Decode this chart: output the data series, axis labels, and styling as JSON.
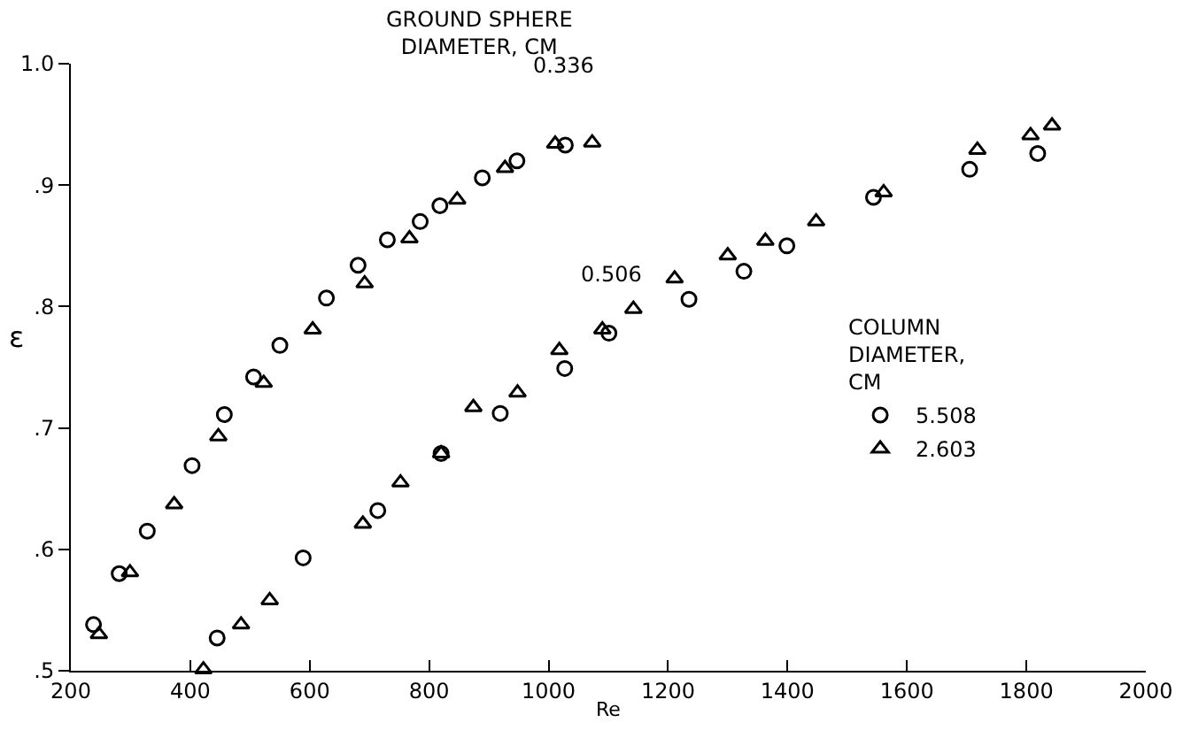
{
  "chart_data": {
    "type": "scatter",
    "xlabel": "Re",
    "ylabel": "ε",
    "legend_title": "COLUMN\nDIAMETER,\nCM",
    "annotations": [
      "GROUND SPHERE\nDIAMETER, CM",
      "0.336",
      "0.506"
    ],
    "xlim": [
      200,
      2000
    ],
    "xticks": [
      200,
      400,
      600,
      800,
      1000,
      1200,
      1400,
      1600,
      1800,
      2000
    ],
    "ylim": [
      0.5,
      1.0
    ],
    "yticks": [
      {
        "value": 0.5,
        "label": ".5"
      },
      {
        "value": 0.6,
        "label": ".6"
      },
      {
        "value": 0.7,
        "label": ".7"
      },
      {
        "value": 0.8,
        "label": ".8"
      },
      {
        "value": 0.9,
        "label": ".9"
      },
      {
        "value": 1.0,
        "label": "1.0"
      }
    ],
    "grid": false,
    "legend": "right",
    "series": [
      {
        "name": "5.508",
        "color": "#000000",
        "marker": "circle",
        "x": [
          238,
          281,
          328,
          403,
          457,
          506,
          550,
          628,
          681,
          730,
          785,
          818,
          889,
          947,
          1028,
          445,
          589,
          714,
          820,
          919,
          1027,
          1101,
          1235,
          1327,
          1399,
          1544,
          1705,
          1819
        ],
        "values": [
          0.538,
          0.58,
          0.615,
          0.669,
          0.711,
          0.742,
          0.768,
          0.807,
          0.834,
          0.855,
          0.87,
          0.883,
          0.906,
          0.92,
          0.933,
          0.527,
          0.593,
          0.632,
          0.679,
          0.712,
          0.749,
          0.778,
          0.806,
          0.829,
          0.85,
          0.89,
          0.913,
          0.926
        ]
      },
      {
        "name": "2.603",
        "color": "#000000",
        "marker": "triangle",
        "x": [
          247,
          299,
          373,
          447,
          523,
          605,
          692,
          767,
          847,
          927,
          1011,
          1073,
          422,
          485,
          533,
          689,
          752,
          820,
          874,
          948,
          1018,
          1090,
          1142,
          1211,
          1300,
          1363,
          1448,
          1561,
          1718,
          1807,
          1843
        ],
        "values": [
          0.53,
          0.581,
          0.637,
          0.693,
          0.737,
          0.781,
          0.819,
          0.856,
          0.888,
          0.914,
          0.934,
          0.935,
          0.501,
          0.538,
          0.558,
          0.621,
          0.655,
          0.679,
          0.717,
          0.729,
          0.764,
          0.781,
          0.798,
          0.823,
          0.842,
          0.854,
          0.87,
          0.894,
          0.929,
          0.941,
          0.949
        ]
      }
    ]
  }
}
